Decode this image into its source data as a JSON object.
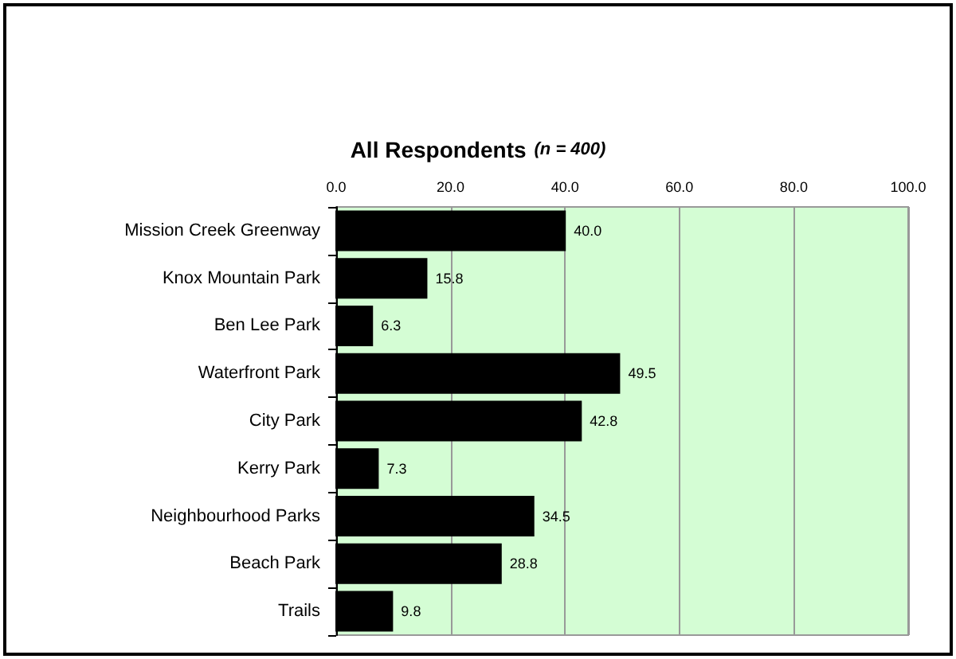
{
  "chart_data": {
    "type": "bar",
    "orientation": "horizontal",
    "title": "All Respondents",
    "subtitle": "(n = 400)",
    "categories": [
      "Mission Creek Greenway",
      "Knox Mountain Park",
      "Ben Lee Park",
      "Waterfront Park",
      "City Park",
      "Kerry Park",
      "Neighbourhood Parks",
      "Beach Park",
      "Trails"
    ],
    "values": [
      40.0,
      15.8,
      6.3,
      49.5,
      42.8,
      7.3,
      34.5,
      28.8,
      9.8
    ],
    "value_labels": [
      "40.0",
      "15.8",
      "6.3",
      "49.5",
      "42.8",
      "7.3",
      "34.5",
      "28.8",
      "9.8"
    ],
    "color": "#000000",
    "xlim": [
      0,
      100
    ],
    "xticks": [
      {
        "value": 0,
        "label": "0.0"
      },
      {
        "value": 20,
        "label": "20.0"
      },
      {
        "value": 40,
        "label": "40.0"
      },
      {
        "value": 60,
        "label": "60.0"
      },
      {
        "value": 80,
        "label": "80.0"
      },
      {
        "value": 100,
        "label": "100.0"
      }
    ],
    "grid": "x"
  }
}
